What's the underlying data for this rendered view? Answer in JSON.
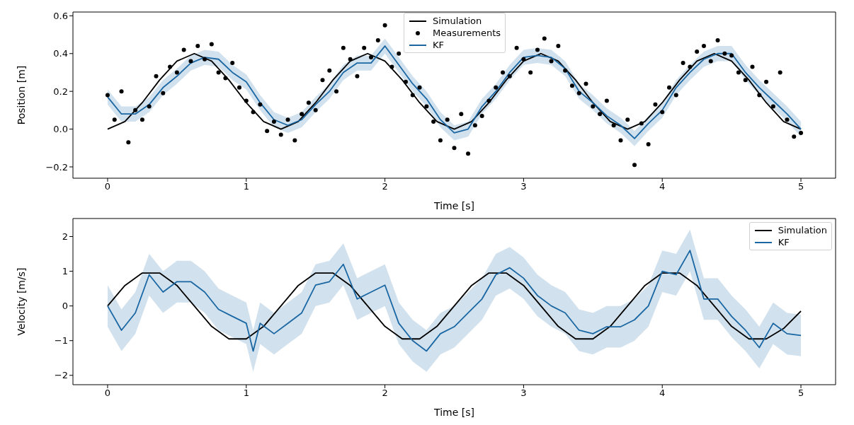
{
  "chart_data": [
    {
      "type": "line",
      "xlabel": "Time [s]",
      "ylabel": "Position [m]",
      "xlim": [
        -0.25,
        5.25
      ],
      "xticks": [
        0,
        1,
        2,
        3,
        4,
        5
      ],
      "ylim": [
        -0.26,
        0.62
      ],
      "yticks": [
        -0.2,
        {
          "value": 0,
          "label": "0.0"
        },
        0.2,
        0.4,
        0.6
      ],
      "legend": "top",
      "series": [
        {
          "name": "Simulation",
          "color": "#000000",
          "x": [
            0,
            0.125,
            0.25,
            0.375,
            0.5,
            0.625,
            0.75,
            0.875,
            1,
            1.125,
            1.25,
            1.375,
            1.5,
            1.625,
            1.75,
            1.875,
            2,
            2.125,
            2.25,
            2.375,
            2.5,
            2.625,
            2.75,
            2.875,
            3,
            3.125,
            3.25,
            3.375,
            3.5,
            3.625,
            3.75,
            3.875,
            4,
            4.125,
            4.25,
            4.375,
            4.5,
            4.625,
            4.75,
            4.875,
            5
          ],
          "values": [
            0,
            0.04,
            0.14,
            0.26,
            0.36,
            0.4,
            0.36,
            0.26,
            0.14,
            0.04,
            0,
            0.04,
            0.14,
            0.26,
            0.36,
            0.4,
            0.36,
            0.26,
            0.14,
            0.04,
            0,
            0.04,
            0.14,
            0.26,
            0.36,
            0.4,
            0.36,
            0.26,
            0.14,
            0.04,
            0,
            0.04,
            0.14,
            0.26,
            0.36,
            0.4,
            0.36,
            0.26,
            0.14,
            0.04,
            0
          ]
        },
        {
          "name": "Measurements",
          "type": "scatter",
          "marker": "circle",
          "color": "#000000",
          "x": [
            0,
            0.05,
            0.1,
            0.15,
            0.2,
            0.25,
            0.3,
            0.35,
            0.4,
            0.45,
            0.5,
            0.55,
            0.6,
            0.65,
            0.7,
            0.75,
            0.8,
            0.85,
            0.9,
            0.95,
            1,
            1.05,
            1.1,
            1.15,
            1.2,
            1.25,
            1.3,
            1.35,
            1.4,
            1.45,
            1.5,
            1.55,
            1.6,
            1.65,
            1.7,
            1.75,
            1.8,
            1.85,
            1.9,
            1.95,
            2,
            2.05,
            2.1,
            2.15,
            2.2,
            2.25,
            2.3,
            2.35,
            2.4,
            2.45,
            2.5,
            2.55,
            2.6,
            2.65,
            2.7,
            2.75,
            2.8,
            2.85,
            2.9,
            2.95,
            3,
            3.05,
            3.1,
            3.15,
            3.2,
            3.25,
            3.3,
            3.35,
            3.4,
            3.45,
            3.5,
            3.55,
            3.6,
            3.65,
            3.7,
            3.75,
            3.8,
            3.85,
            3.9,
            3.95,
            4,
            4.05,
            4.1,
            4.15,
            4.2,
            4.25,
            4.3,
            4.35,
            4.4,
            4.45,
            4.5,
            4.55,
            4.6,
            4.65,
            4.7,
            4.75,
            4.8,
            4.85,
            4.9,
            4.95,
            5
          ],
          "values": [
            0.18,
            0.05,
            0.2,
            -0.07,
            0.1,
            0.05,
            0.12,
            0.28,
            0.19,
            0.33,
            0.3,
            0.42,
            0.36,
            0.44,
            0.37,
            0.45,
            0.3,
            0.27,
            0.35,
            0.22,
            0.15,
            0.09,
            0.13,
            -0.01,
            0.04,
            -0.03,
            0.05,
            -0.06,
            0.08,
            0.14,
            0.1,
            0.26,
            0.31,
            0.2,
            0.43,
            0.37,
            0.28,
            0.43,
            0.38,
            0.47,
            0.55,
            0.33,
            0.4,
            0.25,
            0.18,
            0.22,
            0.12,
            0.04,
            -0.06,
            0.05,
            -0.1,
            0.08,
            -0.13,
            0.02,
            0.07,
            0.15,
            0.22,
            0.3,
            0.28,
            0.43,
            0.37,
            0.3,
            0.42,
            0.48,
            0.36,
            0.44,
            0.31,
            0.23,
            0.19,
            0.24,
            0.12,
            0.08,
            0.15,
            0.02,
            -0.06,
            0.05,
            -0.19,
            0.03,
            -0.08,
            0.13,
            0.09,
            0.22,
            0.18,
            0.35,
            0.33,
            0.41,
            0.44,
            0.36,
            0.47,
            0.4,
            0.39,
            0.3,
            0.26,
            0.33,
            0.18,
            0.25,
            0.12,
            0.3,
            0.05,
            -0.04,
            -0.02
          ]
        },
        {
          "name": "KF",
          "color": "#1a67a3",
          "x": [
            0,
            0.1,
            0.2,
            0.3,
            0.4,
            0.5,
            0.6,
            0.7,
            0.8,
            0.9,
            1,
            1.1,
            1.2,
            1.3,
            1.4,
            1.5,
            1.6,
            1.7,
            1.8,
            1.9,
            2,
            2.1,
            2.2,
            2.3,
            2.4,
            2.5,
            2.6,
            2.7,
            2.8,
            2.9,
            3,
            3.1,
            3.2,
            3.3,
            3.4,
            3.5,
            3.6,
            3.7,
            3.8,
            3.9,
            4,
            4.1,
            4.2,
            4.3,
            4.4,
            4.5,
            4.6,
            4.7,
            4.8,
            4.9,
            5
          ],
          "values": [
            0.17,
            0.08,
            0.08,
            0.13,
            0.22,
            0.28,
            0.35,
            0.38,
            0.37,
            0.3,
            0.25,
            0.14,
            0.05,
            0.02,
            0.05,
            0.13,
            0.2,
            0.3,
            0.35,
            0.35,
            0.44,
            0.34,
            0.24,
            0.16,
            0.05,
            -0.02,
            0,
            0.12,
            0.2,
            0.3,
            0.38,
            0.39,
            0.38,
            0.32,
            0.2,
            0.14,
            0.07,
            0.02,
            -0.05,
            0.03,
            0.1,
            0.22,
            0.3,
            0.37,
            0.4,
            0.4,
            0.3,
            0.22,
            0.15,
            0.08,
            0
          ],
          "lower": [
            0.13,
            0.04,
            0.04,
            0.09,
            0.18,
            0.24,
            0.31,
            0.34,
            0.33,
            0.26,
            0.21,
            0.1,
            0.01,
            -0.02,
            0.01,
            0.09,
            0.16,
            0.26,
            0.31,
            0.31,
            0.4,
            0.3,
            0.2,
            0.12,
            0.01,
            -0.06,
            -0.04,
            0.08,
            0.16,
            0.26,
            0.34,
            0.35,
            0.34,
            0.28,
            0.16,
            0.1,
            0.03,
            -0.02,
            -0.09,
            -0.01,
            0.06,
            0.18,
            0.26,
            0.33,
            0.36,
            0.36,
            0.26,
            0.18,
            0.11,
            0.04,
            -0.04
          ],
          "upper": [
            0.21,
            0.12,
            0.12,
            0.17,
            0.26,
            0.32,
            0.39,
            0.42,
            0.41,
            0.34,
            0.29,
            0.18,
            0.09,
            0.06,
            0.09,
            0.17,
            0.24,
            0.34,
            0.39,
            0.39,
            0.48,
            0.38,
            0.28,
            0.2,
            0.09,
            0.02,
            0.04,
            0.16,
            0.24,
            0.34,
            0.42,
            0.43,
            0.42,
            0.36,
            0.24,
            0.18,
            0.11,
            0.06,
            -0.01,
            0.07,
            0.14,
            0.26,
            0.34,
            0.41,
            0.44,
            0.44,
            0.34,
            0.26,
            0.19,
            0.12,
            0.04
          ]
        }
      ]
    },
    {
      "type": "line",
      "xlabel": "Time [s]",
      "ylabel": "Velocity [m/s]",
      "xlim": [
        -0.25,
        5.25
      ],
      "xticks": [
        0,
        1,
        2,
        3,
        4,
        5
      ],
      "ylim": [
        -2.27,
        2.52
      ],
      "yticks": [
        -2,
        -1,
        0,
        1,
        2
      ],
      "legend": "top right",
      "series": [
        {
          "name": "Simulation",
          "color": "#000000",
          "x": [
            0,
            0.125,
            0.25,
            0.375,
            0.5,
            0.625,
            0.75,
            0.875,
            1,
            1.125,
            1.25,
            1.375,
            1.5,
            1.625,
            1.75,
            1.875,
            2,
            2.125,
            2.25,
            2.375,
            2.5,
            2.625,
            2.75,
            2.875,
            3,
            3.125,
            3.25,
            3.375,
            3.5,
            3.625,
            3.75,
            3.875,
            4,
            4.125,
            4.25,
            4.375,
            4.5,
            4.625,
            4.75,
            4.875,
            5
          ],
          "values": [
            0,
            0.59,
            0.95,
            0.95,
            0.59,
            0,
            -0.59,
            -0.95,
            -0.95,
            -0.59,
            0,
            0.59,
            0.95,
            0.95,
            0.59,
            0,
            -0.59,
            -0.95,
            -0.95,
            -0.59,
            0,
            0.59,
            0.95,
            0.95,
            0.59,
            0,
            -0.59,
            -0.95,
            -0.95,
            -0.59,
            0,
            0.59,
            0.95,
            0.95,
            0.59,
            0,
            -0.59,
            -0.95,
            -0.95,
            -0.65,
            -0.15
          ]
        },
        {
          "name": "KF",
          "color": "#1a67a3",
          "x": [
            0,
            0.1,
            0.2,
            0.3,
            0.4,
            0.5,
            0.6,
            0.7,
            0.8,
            0.9,
            1,
            1.05,
            1.1,
            1.2,
            1.3,
            1.4,
            1.5,
            1.6,
            1.7,
            1.8,
            1.9,
            2,
            2.1,
            2.2,
            2.3,
            2.4,
            2.5,
            2.6,
            2.7,
            2.8,
            2.9,
            3,
            3.1,
            3.2,
            3.3,
            3.4,
            3.5,
            3.6,
            3.7,
            3.8,
            3.9,
            4,
            4.1,
            4.2,
            4.3,
            4.4,
            4.5,
            4.6,
            4.7,
            4.8,
            4.9,
            5
          ],
          "values": [
            0,
            -0.7,
            -0.2,
            0.9,
            0.4,
            0.7,
            0.7,
            0.4,
            -0.1,
            -0.3,
            -0.5,
            -1.3,
            -0.5,
            -0.8,
            -0.5,
            -0.2,
            0.6,
            0.7,
            1.2,
            0.2,
            0.4,
            0.6,
            -0.5,
            -1,
            -1.3,
            -0.8,
            -0.6,
            -0.2,
            0.2,
            0.9,
            1.1,
            0.8,
            0.3,
            0,
            -0.2,
            -0.7,
            -0.8,
            -0.6,
            -0.6,
            -0.4,
            0,
            1,
            0.9,
            1.6,
            0.2,
            0.2,
            -0.3,
            -0.7,
            -1.2,
            -0.5,
            -0.8,
            -0.85
          ],
          "lower": [
            -0.6,
            -1.3,
            -0.8,
            0.3,
            -0.2,
            0.1,
            0.1,
            -0.2,
            -0.7,
            -0.9,
            -1.1,
            -1.9,
            -1.1,
            -1.4,
            -1.1,
            -0.8,
            0,
            0.1,
            0.6,
            -0.4,
            -0.2,
            0,
            -1.1,
            -1.6,
            -1.9,
            -1.4,
            -1.2,
            -0.8,
            -0.4,
            0.3,
            0.5,
            0.2,
            -0.3,
            -0.6,
            -0.8,
            -1.3,
            -1.4,
            -1.2,
            -1.2,
            -1,
            -0.6,
            0.4,
            0.3,
            1,
            -0.4,
            -0.4,
            -0.9,
            -1.3,
            -1.8,
            -1.1,
            -1.4,
            -1.45
          ],
          "upper": [
            0.6,
            -0.1,
            0.4,
            1.5,
            1,
            1.3,
            1.3,
            1,
            0.5,
            0.3,
            0.1,
            -0.7,
            0.1,
            -0.2,
            0.1,
            0.4,
            1.2,
            1.3,
            1.8,
            0.8,
            1,
            1.2,
            0.1,
            -0.4,
            -0.7,
            -0.2,
            0,
            0.4,
            0.8,
            1.5,
            1.7,
            1.4,
            0.9,
            0.6,
            0.4,
            -0.1,
            -0.2,
            0,
            0,
            0.2,
            0.6,
            1.6,
            1.5,
            2.2,
            0.8,
            0.8,
            0.3,
            -0.1,
            -0.6,
            0.1,
            -0.2,
            -0.25
          ]
        }
      ]
    }
  ]
}
